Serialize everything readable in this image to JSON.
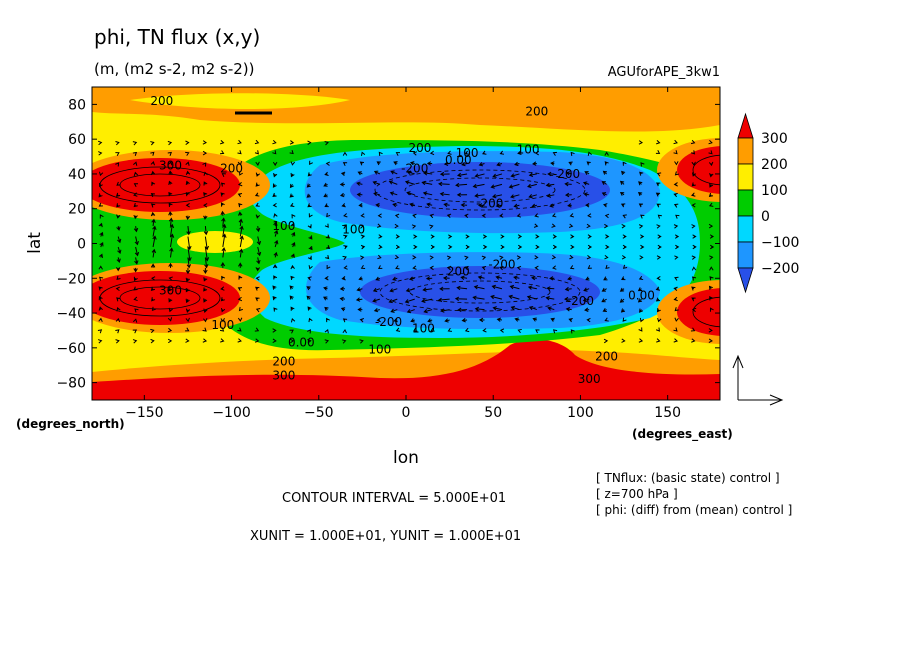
{
  "chart_data": {
    "type": "heatmap",
    "title": "phi, TN flux (x,y)",
    "subtitle": "(m, (m2 s-2, m2 s-2))",
    "experiment_label": "AGUforAPE_3kw1",
    "xlabel": "lon",
    "ylabel": "lat",
    "x_unit_label": "(degrees_east)",
    "y_unit_label": "(degrees_north)",
    "xlim": [
      -180,
      180
    ],
    "ylim": [
      -90,
      90
    ],
    "x_ticks": [
      -150,
      -100,
      -50,
      0,
      50,
      100,
      150
    ],
    "x_tick_labels": [
      "−150",
      "−100",
      "−50",
      "0",
      "50",
      "100",
      "150"
    ],
    "y_ticks": [
      -80,
      -60,
      -40,
      -20,
      0,
      20,
      40,
      60,
      80
    ],
    "y_tick_labels": [
      "−80",
      "−60",
      "−40",
      "−20",
      "0",
      "20",
      "40",
      "60",
      "80"
    ],
    "colorbar": {
      "levels": [
        300,
        200,
        100,
        0,
        -100,
        -200
      ],
      "labels": [
        "300",
        "200",
        "100",
        "0",
        "−100",
        "−200"
      ],
      "colors": [
        "#ee0000",
        "#ff9d00",
        "#ffee00",
        "#00cc00",
        "#00d8ff",
        "#1e96ff",
        "#2850e8"
      ]
    },
    "contour_labels": [
      {
        "text": "200",
        "lon": -140,
        "lat": 82
      },
      {
        "text": "200",
        "lon": 75,
        "lat": 76
      },
      {
        "text": "200",
        "lon": 8,
        "lat": 55
      },
      {
        "text": "100",
        "lon": 35,
        "lat": 52
      },
      {
        "text": "100",
        "lon": 70,
        "lat": 54
      },
      {
        "text": "0.00",
        "lon": 30,
        "lat": 48
      },
      {
        "text": "200",
        "lon": -100,
        "lat": 43
      },
      {
        "text": "-200",
        "lon": 5,
        "lat": 43
      },
      {
        "text": "-200",
        "lon": 92,
        "lat": 40
      },
      {
        "text": "300",
        "lon": -135,
        "lat": 45
      },
      {
        "text": "-200",
        "lon": 48,
        "lat": 23
      },
      {
        "text": "100",
        "lon": -30,
        "lat": 8
      },
      {
        "text": "100",
        "lon": -70,
        "lat": 10
      },
      {
        "text": "-200",
        "lon": 55,
        "lat": -12
      },
      {
        "text": "200",
        "lon": 30,
        "lat": -16
      },
      {
        "text": "300",
        "lon": -135,
        "lat": -27
      },
      {
        "text": "-200",
        "lon": 100,
        "lat": -33
      },
      {
        "text": "100",
        "lon": -105,
        "lat": -47
      },
      {
        "text": "-200",
        "lon": -10,
        "lat": -45
      },
      {
        "text": "100",
        "lon": 10,
        "lat": -49
      },
      {
        "text": "0.00",
        "lon": 135,
        "lat": -30
      },
      {
        "text": "0.00",
        "lon": -60,
        "lat": -57
      },
      {
        "text": "100",
        "lon": -15,
        "lat": -61
      },
      {
        "text": "200",
        "lon": -70,
        "lat": -68
      },
      {
        "text": "200",
        "lon": 115,
        "lat": -65
      },
      {
        "text": "300",
        "lon": -70,
        "lat": -76
      },
      {
        "text": "300",
        "lon": 105,
        "lat": -78
      }
    ]
  },
  "info": {
    "contour_interval": "CONTOUR INTERVAL = 5.000E+01",
    "units": "XUNIT = 1.000E+01, YUNIT = 1.000E+01",
    "notes": [
      "[ TNflux: (basic state) control ]",
      "[ z=700 hPa ]",
      "[ phi: (diff) from (mean) control ]"
    ]
  }
}
